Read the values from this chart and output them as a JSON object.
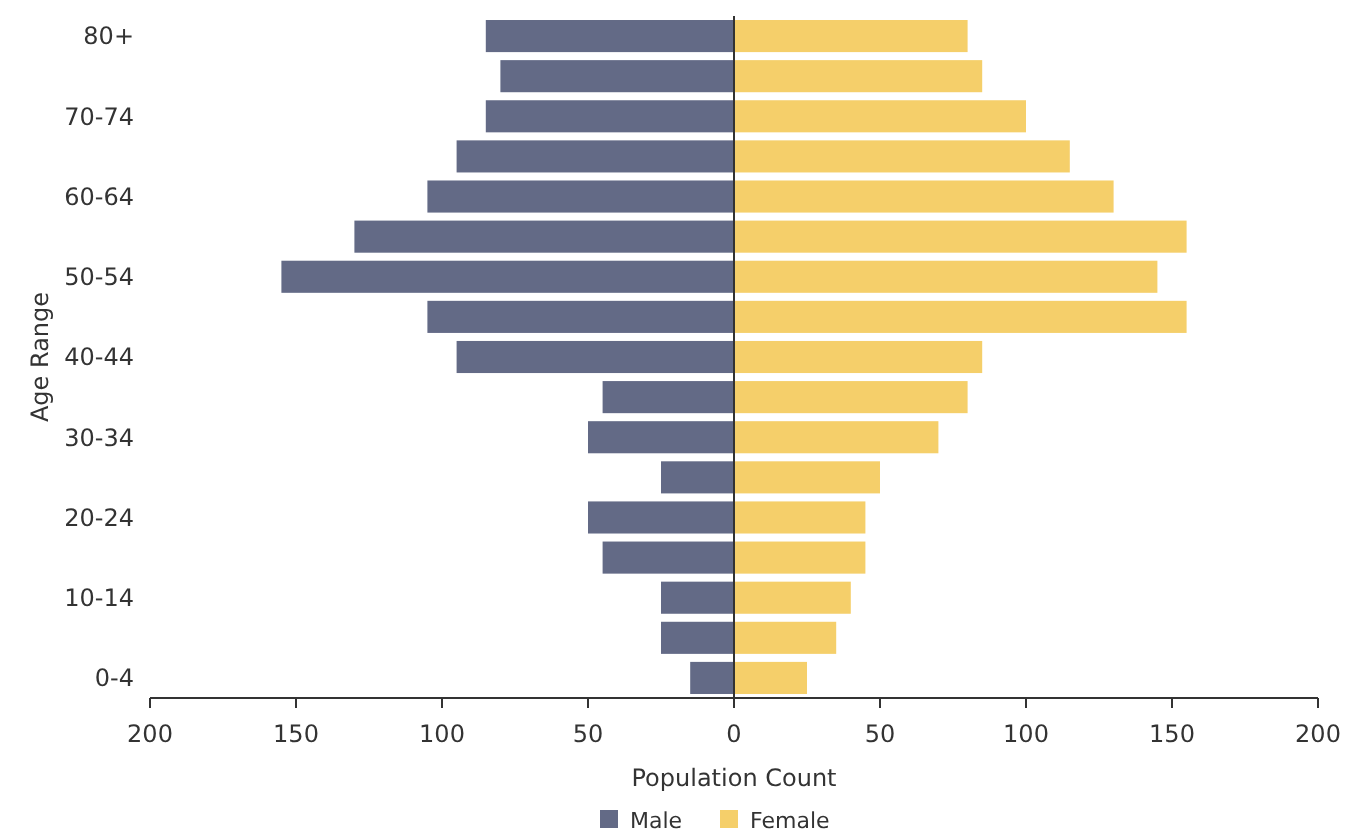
{
  "chart_data": {
    "type": "bar",
    "orientation": "horizontal",
    "stacked": true,
    "xlabel": "Population Count",
    "ylabel": "Age Range",
    "categories": [
      "80+",
      null,
      "70-74",
      null,
      "60-64",
      null,
      "50-54",
      null,
      "40-44",
      null,
      "30-34",
      null,
      "20-24",
      null,
      "10-14",
      null,
      "0-4"
    ],
    "series": [
      {
        "name": "Male",
        "color": "#636a86",
        "values": [
          -85,
          -80,
          -85,
          -95,
          -105,
          -130,
          -155,
          -105,
          -95,
          -45,
          -50,
          -25,
          -50,
          -45,
          -25,
          -25,
          -15
        ]
      },
      {
        "name": "Female",
        "color": "#f5cf6a",
        "values": [
          80,
          85,
          100,
          115,
          130,
          155,
          145,
          155,
          85,
          80,
          70,
          50,
          45,
          45,
          40,
          35,
          25
        ]
      }
    ],
    "xlim": [
      -200,
      200
    ],
    "xticks": [
      {
        "value": -200,
        "label": "200"
      },
      {
        "value": -150,
        "label": "150"
      },
      {
        "value": -100,
        "label": "100"
      },
      {
        "value": -50,
        "label": "50"
      },
      0,
      50,
      100,
      150,
      200
    ],
    "legend": "bottom"
  }
}
